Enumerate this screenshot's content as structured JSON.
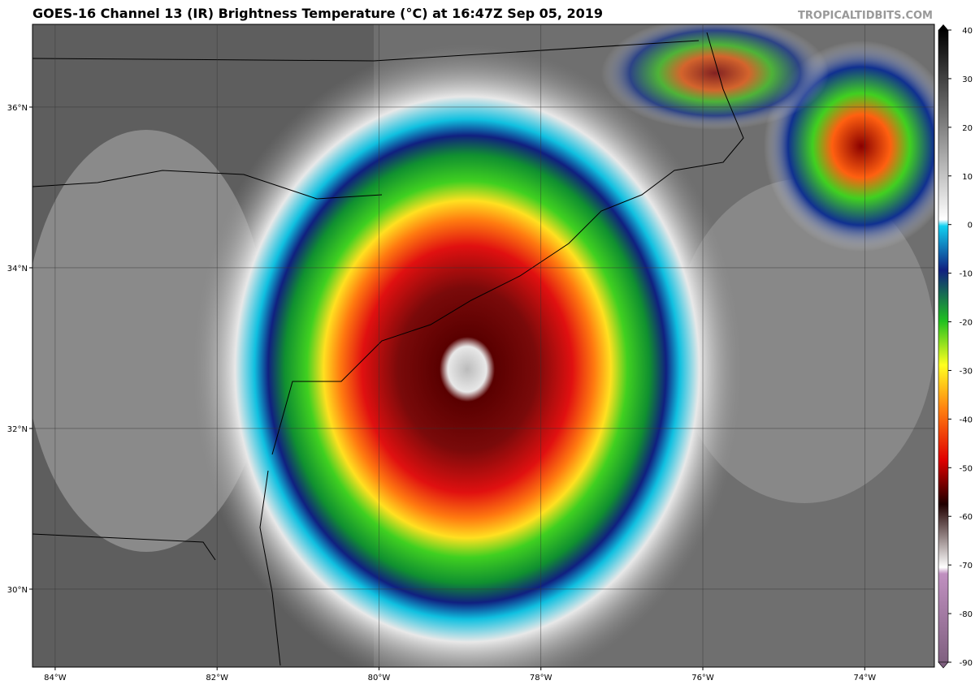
{
  "title": "GOES-16 Channel 13 (IR) Brightness Temperature (°C) at 16:47Z Sep 05, 2019",
  "watermark": "TROPICALTIDBITS.COM",
  "map": {
    "lonlim": [
      -84.28,
      -73.14
    ],
    "latlim": [
      29.03,
      37.03
    ],
    "lon_ticks": [
      {
        "value": -84,
        "label": "84°W"
      },
      {
        "value": -82,
        "label": "82°W"
      },
      {
        "value": -80,
        "label": "80°W"
      },
      {
        "value": -78,
        "label": "78°W"
      },
      {
        "value": -76,
        "label": "76°W"
      },
      {
        "value": -74,
        "label": "74°W"
      }
    ],
    "lat_ticks": [
      {
        "value": 36,
        "label": "36°N"
      },
      {
        "value": 34,
        "label": "34°N"
      },
      {
        "value": 32,
        "label": "32°N"
      },
      {
        "value": 30,
        "label": "30°N"
      }
    ]
  },
  "colorbar": {
    "lim": [
      -90,
      40
    ],
    "ticks": [
      40,
      30,
      20,
      10,
      0,
      -10,
      -20,
      -30,
      -40,
      -50,
      -60,
      -70,
      -80,
      -90
    ]
  }
}
